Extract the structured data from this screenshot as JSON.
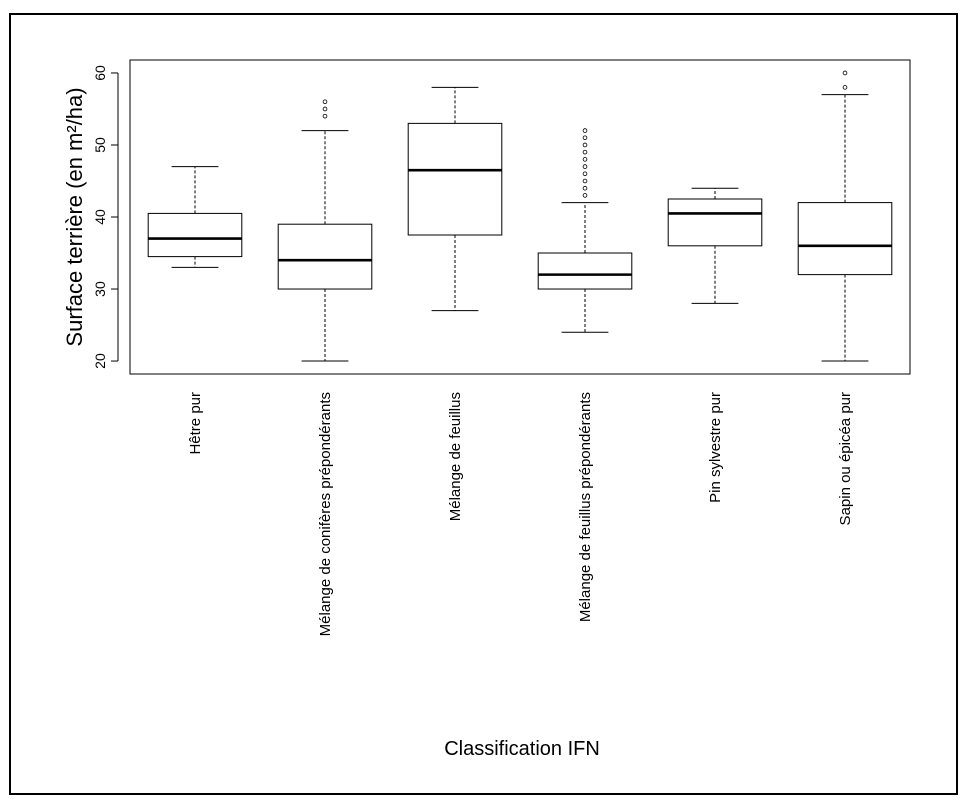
{
  "chart_data": {
    "type": "boxplot",
    "xlabel": "Classification IFN",
    "ylabel": "Surface terrière (en m²/ha)",
    "ylim": [
      18.2,
      61.8
    ],
    "yticks": [
      20,
      30,
      40,
      50,
      60
    ],
    "ytick_labels": [
      "20",
      "30",
      "40",
      "50",
      "60"
    ],
    "grid": false,
    "categories": [
      "Hêtre pur",
      "Mélange de conifères prépondérants",
      "Mélange de feuillus",
      "Mélange de feuillus prépondérants",
      "Pin sylvestre pur",
      "Sapin ou épicéa pur"
    ],
    "boxes": [
      {
        "whisker_low": 33,
        "q1": 34.5,
        "median": 37,
        "q3": 40.5,
        "whisker_high": 47,
        "outliers": []
      },
      {
        "whisker_low": 20,
        "q1": 30,
        "median": 34,
        "q3": 39,
        "whisker_high": 52,
        "outliers": [
          54,
          55,
          56
        ]
      },
      {
        "whisker_low": 27,
        "q1": 37.5,
        "median": 46.5,
        "q3": 53,
        "whisker_high": 58,
        "outliers": []
      },
      {
        "whisker_low": 24,
        "q1": 30,
        "median": 32,
        "q3": 35,
        "whisker_high": 42,
        "outliers": [
          43,
          44,
          45,
          46,
          47,
          48,
          49,
          50,
          51,
          52
        ]
      },
      {
        "whisker_low": 28,
        "q1": 36,
        "median": 40.5,
        "q3": 42.5,
        "whisker_high": 44,
        "outliers": []
      },
      {
        "whisker_low": 20,
        "q1": 32,
        "median": 36,
        "q3": 42,
        "whisker_high": 57,
        "outliers": [
          58,
          60
        ]
      }
    ]
  }
}
